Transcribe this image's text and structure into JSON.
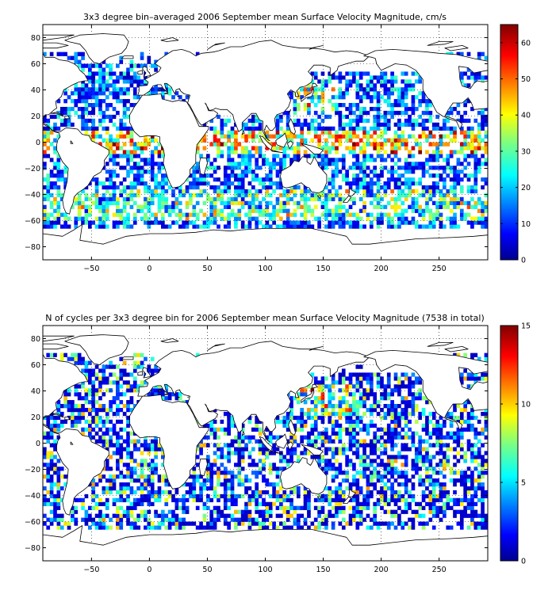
{
  "chart_data": [
    {
      "type": "heatmap",
      "title": "3x3 degree bin–averaged 2006 September mean Surface Velocity Magnitude, cm/s",
      "xlim": [
        -92,
        292
      ],
      "ylim": [
        -90,
        90
      ],
      "xticks": [
        -50,
        0,
        50,
        100,
        150,
        200,
        250
      ],
      "yticks": [
        80,
        60,
        40,
        20,
        0,
        -20,
        -40,
        -60,
        -80
      ],
      "grid": "dotted",
      "bin_size_deg": 3,
      "colorbar": {
        "min": 0,
        "max": 65,
        "ticks": [
          0,
          10,
          20,
          30,
          40,
          50,
          60
        ],
        "colormap": "jet"
      },
      "value_range_note": "bins mostly 5–25 cm/s, equatorial bands 40–65 cm/s"
    },
    {
      "type": "heatmap",
      "title": "N of cycles per 3x3 degree bin for 2006 September mean Surface Velocity Magnitude (7538 in total)",
      "xlim": [
        -92,
        292
      ],
      "ylim": [
        -90,
        90
      ],
      "xticks": [
        -50,
        0,
        50,
        100,
        150,
        200,
        250
      ],
      "yticks": [
        80,
        60,
        40,
        20,
        0,
        -20,
        -40,
        -60,
        -80
      ],
      "grid": "dotted",
      "bin_size_deg": 3,
      "total_cycles": 7538,
      "colorbar": {
        "min": 0,
        "max": 15,
        "ticks": [
          0,
          5,
          10,
          15
        ],
        "colormap": "jet"
      }
    }
  ]
}
